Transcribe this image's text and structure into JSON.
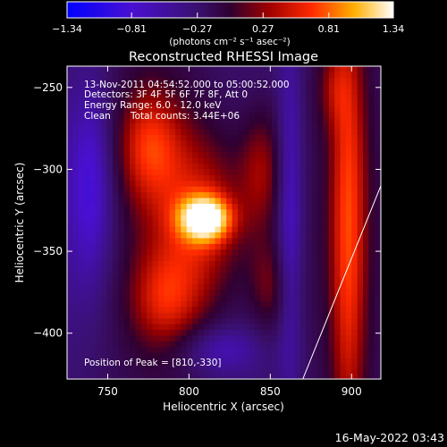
{
  "chart_data": {
    "type": "heatmap",
    "title": "Reconstructed RHESSI Image",
    "xlabel": "Heliocentric X (arcsec)",
    "ylabel": "Heliocentric Y (arcsec)",
    "xlim": [
      725,
      918
    ],
    "ylim": [
      -428,
      -237
    ],
    "x_ticks": [
      750,
      800,
      850,
      900
    ],
    "y_ticks": [
      -250,
      -300,
      -350,
      -400
    ],
    "colorbar": {
      "min": -1.34,
      "max": 1.34,
      "ticks": [
        "-1.34",
        "-0.81",
        "-0.27",
        "0.27",
        "0.81",
        "1.34"
      ],
      "label": "(photons cm⁻² s⁻¹ asec⁻²)",
      "colormap": "rhessi-blue-purple-red-yellow-white"
    },
    "peak": {
      "x": 810,
      "y": -330,
      "value": 1.34
    },
    "limb_line": [
      [
        870,
        -428
      ],
      [
        918,
        -310
      ]
    ],
    "annotations": {
      "time_range": "13-Nov-2011 04:54:52.000 to 05:00:52.000",
      "detectors": "Detectors: 3F 4F 5F 6F 7F 8F, Att 0",
      "energy_range": "Energy Range: 6.0 - 12.0 keV",
      "clean_label": "Clean",
      "total_counts": "Total counts: 3.44E+06",
      "peak_position": "Position of Peak = [810,-330]"
    }
  },
  "footer": {
    "timestamp": "16-May-2022 03:43"
  }
}
